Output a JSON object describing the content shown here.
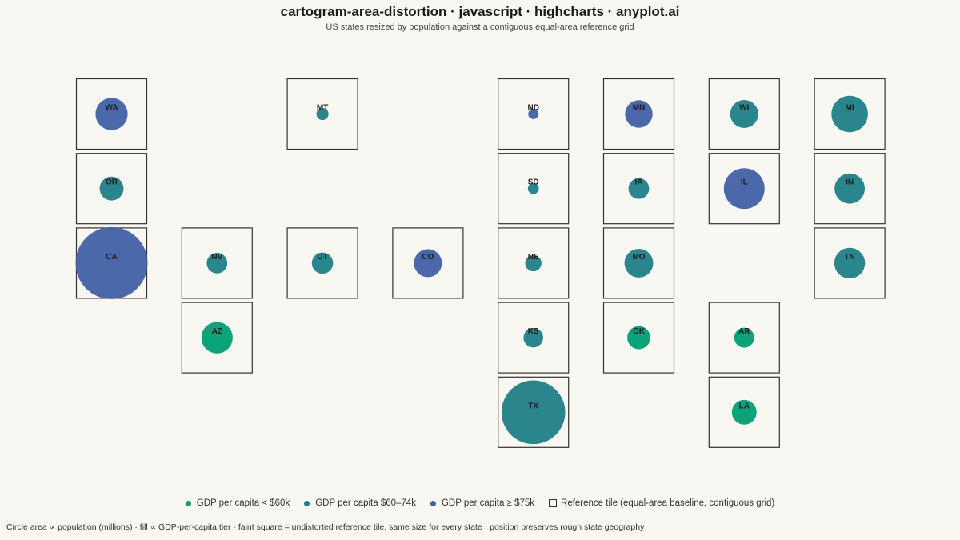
{
  "title": "cartogram-area-distortion · javascript · highcharts · anyplot.ai",
  "subtitle": "US states resized by population against a contiguous equal-area reference grid",
  "colors": {
    "low": "#009e73",
    "mid": "#1f7f86",
    "high": "#4161a5",
    "tile_stroke": "#333333",
    "background": "#f9f7f1"
  },
  "legend": {
    "items": [
      {
        "key": "low",
        "label": "GDP per capita < $60k"
      },
      {
        "key": "mid",
        "label": "GDP per capita $60–74k"
      },
      {
        "key": "high",
        "label": "GDP per capita ≥ $75k"
      }
    ],
    "reference_label": "Reference tile (equal-area baseline, contiguous grid)"
  },
  "caption": "Circle area ∝ population (millions) · fill ∝ GDP-per-capita tier · faint square = undistorted reference tile, same size for every state · position preserves rough state geography",
  "chart_data": {
    "type": "cartogram",
    "title": "cartogram-area-distortion · javascript · highcharts · anyplot.ai",
    "subtitle": "US states resized by population against a contiguous equal-area reference grid",
    "grid_columns": 8,
    "grid_rows": 5,
    "states": [
      {
        "code": "WA",
        "col": 0,
        "row": 0,
        "population": 7.8,
        "tier": "high"
      },
      {
        "code": "OR",
        "col": 0,
        "row": 1,
        "population": 4.3,
        "tier": "mid"
      },
      {
        "code": "CA",
        "col": 0,
        "row": 2,
        "population": 39.0,
        "tier": "high"
      },
      {
        "code": "NV",
        "col": 1,
        "row": 2,
        "population": 3.2,
        "tier": "mid"
      },
      {
        "code": "AZ",
        "col": 1,
        "row": 3,
        "population": 7.4,
        "tier": "low"
      },
      {
        "code": "MT",
        "col": 2,
        "row": 0,
        "population": 1.1,
        "tier": "mid"
      },
      {
        "code": "UT",
        "col": 2,
        "row": 2,
        "population": 3.4,
        "tier": "mid"
      },
      {
        "code": "CO",
        "col": 3,
        "row": 2,
        "population": 5.9,
        "tier": "high"
      },
      {
        "code": "ND",
        "col": 4,
        "row": 0,
        "population": 0.8,
        "tier": "high"
      },
      {
        "code": "SD",
        "col": 4,
        "row": 1,
        "population": 0.9,
        "tier": "mid"
      },
      {
        "code": "NE",
        "col": 4,
        "row": 2,
        "population": 2.0,
        "tier": "mid"
      },
      {
        "code": "KS",
        "col": 4,
        "row": 3,
        "population": 2.9,
        "tier": "mid"
      },
      {
        "code": "TX",
        "col": 4,
        "row": 4,
        "population": 30.5,
        "tier": "mid"
      },
      {
        "code": "MN",
        "col": 5,
        "row": 0,
        "population": 5.7,
        "tier": "high"
      },
      {
        "code": "IA",
        "col": 5,
        "row": 1,
        "population": 3.2,
        "tier": "mid"
      },
      {
        "code": "MO",
        "col": 5,
        "row": 2,
        "population": 6.2,
        "tier": "mid"
      },
      {
        "code": "OK",
        "col": 5,
        "row": 3,
        "population": 4.0,
        "tier": "low"
      },
      {
        "code": "WI",
        "col": 6,
        "row": 0,
        "population": 5.9,
        "tier": "mid"
      },
      {
        "code": "IL",
        "col": 6,
        "row": 1,
        "population": 12.5,
        "tier": "high"
      },
      {
        "code": "AR",
        "col": 6,
        "row": 3,
        "population": 3.0,
        "tier": "low"
      },
      {
        "code": "LA",
        "col": 6,
        "row": 4,
        "population": 4.6,
        "tier": "low"
      },
      {
        "code": "MI",
        "col": 7,
        "row": 0,
        "population": 10.0,
        "tier": "mid"
      },
      {
        "code": "IN",
        "col": 7,
        "row": 1,
        "population": 6.9,
        "tier": "mid"
      },
      {
        "code": "TN",
        "col": 7,
        "row": 2,
        "population": 7.1,
        "tier": "mid"
      }
    ]
  }
}
